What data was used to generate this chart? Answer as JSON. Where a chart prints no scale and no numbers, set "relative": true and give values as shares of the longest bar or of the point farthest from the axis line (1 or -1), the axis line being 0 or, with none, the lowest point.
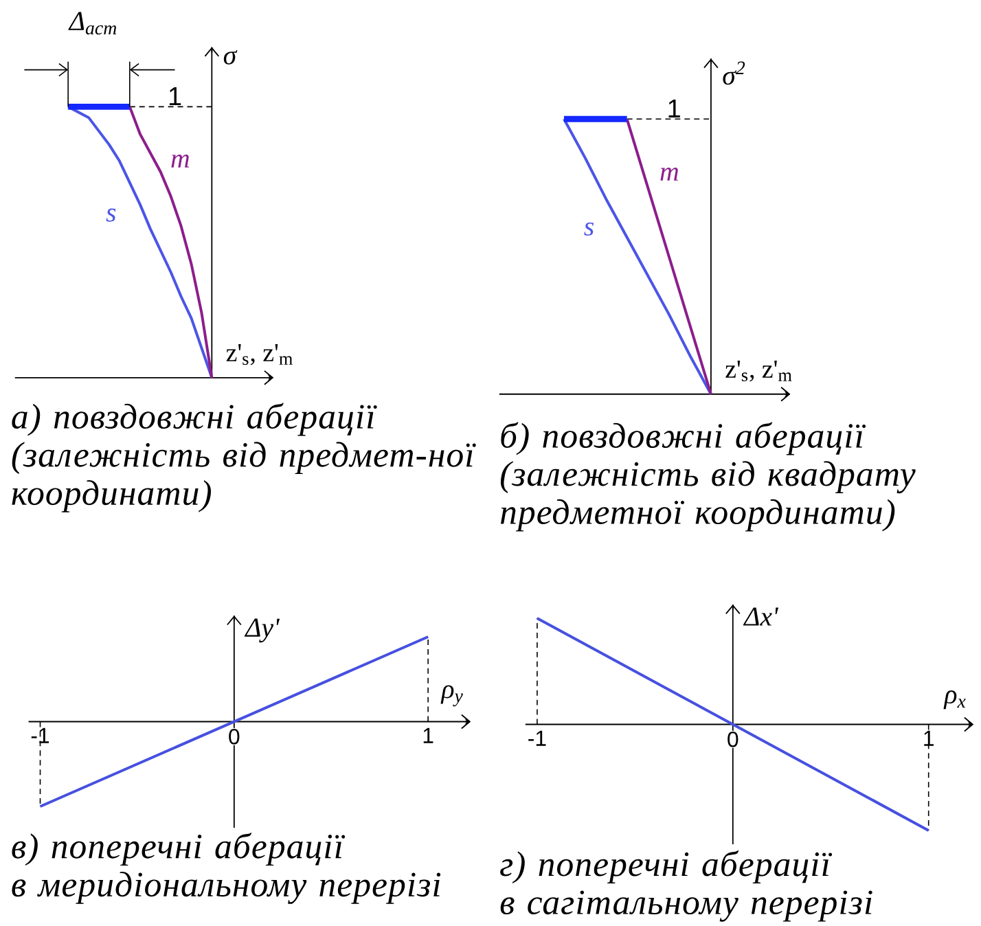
{
  "chart_data": [
    {
      "type": "line",
      "title": "а) повздовжні аберації",
      "subtitle": "(залежність від предмет-ної координати)",
      "xlabel": "z'$_{s}$, z'$_{m}$",
      "ylabel": "σ",
      "annotations": [
        "Δ$_{аст}$"
      ],
      "relative": true,
      "tick_labels": false,
      "categories": [
        null,
        null,
        null,
        null,
        null,
        null,
        null,
        null,
        null,
        null,
        null,
        null,
        null,
        null,
        null
      ],
      "ref_lines": [
        {
          "axis": "y",
          "value": 1,
          "label": "1",
          "line_style": "dashed"
        }
      ],
      "series": [
        {
          "name": "s",
          "color": "#4b55e6",
          "values": [
            1,
            0.98,
            0.96,
            0.91,
            0.86,
            0.8,
            0.72,
            0.64,
            0.55,
            0.47,
            0.39,
            0.3,
            0.22,
            0.11,
            0
          ]
        },
        {
          "name": "m",
          "color": "#8c1e8c",
          "values": [
            null,
            null,
            null,
            null,
            null,
            null,
            1,
            0.9,
            0.83,
            0.76,
            0.67,
            0.56,
            0.42,
            0.24,
            0
          ]
        },
        {
          "color": "#1428ff",
          "values": [
            1,
            1,
            1,
            1,
            1,
            1,
            1,
            null,
            null,
            null,
            null,
            null,
            null,
            null,
            null
          ]
        }
      ]
    },
    {
      "type": "line",
      "title": "б) повздовжні аберації",
      "subtitle": "(залежність від квадрату предметної координати)",
      "xlabel": "z'$_{s}$, z'$_{m}$",
      "ylabel": "σ$^{2}$",
      "relative": true,
      "tick_labels": false,
      "categories": [
        null,
        null,
        null,
        null,
        null,
        null,
        null,
        null
      ],
      "ref_lines": [
        {
          "axis": "y",
          "value": 1,
          "label": "1",
          "line_style": "dashed"
        }
      ],
      "series": [
        {
          "name": "s",
          "color": "#4b55e6",
          "values": [
            1,
            0.86,
            0.71,
            0.57,
            0.43,
            0.29,
            0.14,
            0
          ]
        },
        {
          "name": "m",
          "color": "#8c1e8c",
          "values": [
            null,
            null,
            null,
            1,
            0.75,
            0.5,
            0.25,
            0
          ]
        },
        {
          "color": "#1428ff",
          "values": [
            1,
            1,
            1,
            1,
            null,
            null,
            null,
            null
          ]
        }
      ]
    },
    {
      "type": "line",
      "title": "в) поперечні аберації",
      "subtitle": "в меридіональному перерізі",
      "xlabel": "ρ$_{y}$",
      "ylabel": "Δy'",
      "relative": true,
      "tick_labels": "x",
      "categories": [
        "-1",
        "0",
        "1"
      ],
      "ref_lines": [
        {
          "axis": "x",
          "value": "-1",
          "line_style": "dashed"
        },
        {
          "axis": "x",
          "value": "1",
          "line_style": "dashed"
        }
      ],
      "series": [
        {
          "color": "#4650e0",
          "values": [
            -1,
            0,
            1
          ]
        }
      ]
    },
    {
      "type": "line",
      "title": "г) поперечні аберації",
      "subtitle": "в сагітальному перерізі",
      "xlabel": "ρ$_{x}$",
      "ylabel": "Δx'",
      "relative": true,
      "tick_labels": "x",
      "categories": [
        "-1",
        "0",
        "1"
      ],
      "ref_lines": [
        {
          "axis": "x",
          "value": "-1",
          "line_style": "dashed"
        },
        {
          "axis": "x",
          "value": "1",
          "line_style": "dashed"
        }
      ],
      "series": [
        {
          "color": "#4650e0",
          "values": [
            1,
            0,
            -1
          ]
        }
      ]
    }
  ]
}
